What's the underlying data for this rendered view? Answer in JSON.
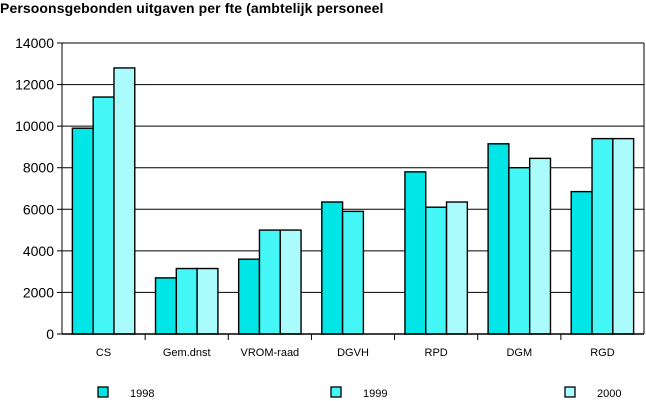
{
  "chart_data": {
    "type": "bar",
    "title": "Persoonsgebonden uitgaven per fte (ambtelijk personeel",
    "xlabel": "",
    "ylabel": "",
    "categories": [
      "CS",
      "Gem.dnst",
      "VROM-raad",
      "DGVH",
      "RPD",
      "DGM",
      "RGD"
    ],
    "series": [
      {
        "name": "1998",
        "color": "#00e5e5",
        "values": [
          9900,
          2700,
          3600,
          6350,
          7800,
          9150,
          6850
        ]
      },
      {
        "name": "1999",
        "color": "#44f6f6",
        "values": [
          11400,
          3150,
          5000,
          5900,
          6100,
          8000,
          9400
        ]
      },
      {
        "name": "2000",
        "color": "#aafcfc",
        "values": [
          12800,
          3150,
          5000,
          0,
          6350,
          8450,
          9400
        ]
      }
    ],
    "ylim": [
      0,
      14000
    ],
    "yticks": [
      0,
      2000,
      4000,
      6000,
      8000,
      10000,
      12000,
      14000
    ],
    "grid": true,
    "legend_position": "bottom"
  }
}
